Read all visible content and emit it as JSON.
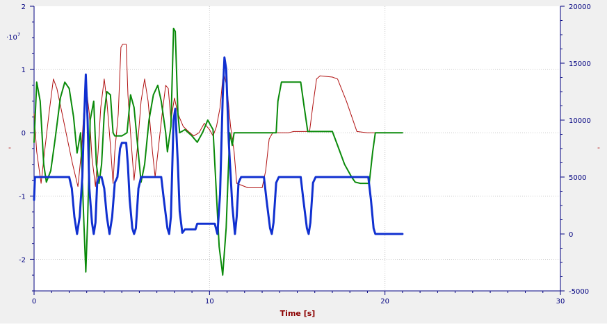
{
  "chart_data": {
    "type": "line",
    "xlabel": "Time [s]",
    "xlim": [
      0,
      30
    ],
    "x_ticks": [
      0,
      10,
      20,
      30
    ],
    "left_axis": {
      "multiplier": "·10",
      "multiplier_exp": "7",
      "unit_marker": "-",
      "ylim": [
        -2.5,
        2
      ],
      "ticks": [
        2,
        1,
        0,
        -1,
        -2
      ]
    },
    "right_axis": {
      "unit_marker": "-",
      "ylim": [
        -5000,
        20000
      ],
      "ticks": [
        20000,
        15000,
        10000,
        5000,
        0,
        -5000
      ]
    },
    "grid": true,
    "colors": {
      "axis": "#000080",
      "xlabel": "#8b0000",
      "grid": "#c8c8c8",
      "background": "#ffffff"
    },
    "series": [
      {
        "color": "#b01010",
        "width": 1,
        "axis": "left",
        "points": [
          [
            0,
            0.3
          ],
          [
            0.15,
            -0.3
          ],
          [
            0.4,
            -0.8
          ],
          [
            0.6,
            -0.3
          ],
          [
            0.85,
            0.3
          ],
          [
            1.1,
            0.85
          ],
          [
            1.3,
            0.7
          ],
          [
            1.6,
            0.3
          ],
          [
            1.9,
            -0.1
          ],
          [
            2.2,
            -0.5
          ],
          [
            2.5,
            -0.85
          ],
          [
            2.7,
            -0.3
          ],
          [
            2.85,
            0.4
          ],
          [
            3.0,
            0.65
          ],
          [
            3.15,
            0.3
          ],
          [
            3.3,
            -0.4
          ],
          [
            3.5,
            -0.85
          ],
          [
            3.65,
            -0.3
          ],
          [
            3.8,
            0.4
          ],
          [
            4.0,
            0.85
          ],
          [
            4.15,
            0.5
          ],
          [
            4.35,
            -0.2
          ],
          [
            4.5,
            -0.8
          ],
          [
            4.6,
            -0.3
          ],
          [
            4.8,
            0.3
          ],
          [
            4.95,
            1.35
          ],
          [
            5.05,
            1.4
          ],
          [
            5.25,
            1.4
          ],
          [
            5.35,
            0.6
          ],
          [
            5.55,
            -0.2
          ],
          [
            5.7,
            -0.75
          ],
          [
            5.9,
            -0.2
          ],
          [
            6.1,
            0.5
          ],
          [
            6.3,
            0.85
          ],
          [
            6.5,
            0.5
          ],
          [
            6.75,
            -0.3
          ],
          [
            6.9,
            -0.7
          ],
          [
            7.1,
            -0.2
          ],
          [
            7.3,
            0.3
          ],
          [
            7.5,
            0.75
          ],
          [
            7.65,
            0.7
          ],
          [
            7.8,
            0.2
          ],
          [
            8.0,
            0.55
          ],
          [
            8.2,
            0.3
          ],
          [
            8.5,
            0.1
          ],
          [
            8.8,
            0.02
          ],
          [
            9.1,
            -0.05
          ],
          [
            9.4,
            0.0
          ],
          [
            9.7,
            0.15
          ],
          [
            10.0,
            0.05
          ],
          [
            10.2,
            -0.05
          ],
          [
            10.4,
            0.1
          ],
          [
            10.6,
            0.4
          ],
          [
            10.75,
            0.85
          ],
          [
            10.85,
            0.9
          ],
          [
            11.0,
            0.7
          ],
          [
            11.2,
            0.1
          ],
          [
            11.4,
            -0.3
          ],
          [
            11.55,
            -0.8
          ],
          [
            12.2,
            -0.87
          ],
          [
            13.0,
            -0.87
          ],
          [
            13.2,
            -0.6
          ],
          [
            13.4,
            -0.1
          ],
          [
            13.6,
            0.0
          ],
          [
            14.2,
            0.0
          ],
          [
            14.5,
            0.0
          ],
          [
            14.8,
            0.02
          ],
          [
            15.4,
            0.02
          ],
          [
            15.7,
            0.02
          ],
          [
            15.9,
            0.45
          ],
          [
            16.1,
            0.85
          ],
          [
            16.3,
            0.9
          ],
          [
            17.0,
            0.88
          ],
          [
            17.3,
            0.85
          ],
          [
            17.8,
            0.5
          ],
          [
            18.4,
            0.02
          ],
          [
            19.0,
            0.0
          ],
          [
            21.0,
            0.0
          ]
        ]
      },
      {
        "color": "#0a8a0a",
        "width": 2,
        "axis": "left",
        "points": [
          [
            0,
            -0.15
          ],
          [
            0.15,
            0.8
          ],
          [
            0.35,
            0.5
          ],
          [
            0.55,
            -0.5
          ],
          [
            0.7,
            -0.78
          ],
          [
            0.95,
            -0.6
          ],
          [
            1.2,
            -0.1
          ],
          [
            1.5,
            0.55
          ],
          [
            1.75,
            0.8
          ],
          [
            2.0,
            0.7
          ],
          [
            2.25,
            0.25
          ],
          [
            2.45,
            -0.32
          ],
          [
            2.65,
            0.0
          ],
          [
            2.85,
            -1.5
          ],
          [
            2.95,
            -2.2
          ],
          [
            3.05,
            -1.4
          ],
          [
            3.2,
            0.2
          ],
          [
            3.4,
            0.5
          ],
          [
            3.55,
            -0.5
          ],
          [
            3.7,
            -0.8
          ],
          [
            3.85,
            -0.5
          ],
          [
            4.0,
            0.3
          ],
          [
            4.15,
            0.65
          ],
          [
            4.35,
            0.6
          ],
          [
            4.5,
            0.0
          ],
          [
            4.6,
            -0.05
          ],
          [
            5.0,
            -0.05
          ],
          [
            5.3,
            0.0
          ],
          [
            5.5,
            0.6
          ],
          [
            5.7,
            0.4
          ],
          [
            5.9,
            -0.2
          ],
          [
            6.1,
            -0.78
          ],
          [
            6.3,
            -0.5
          ],
          [
            6.55,
            0.2
          ],
          [
            6.8,
            0.6
          ],
          [
            7.05,
            0.75
          ],
          [
            7.25,
            0.5
          ],
          [
            7.5,
            0.0
          ],
          [
            7.6,
            -0.3
          ],
          [
            7.8,
            0.1
          ],
          [
            7.95,
            1.65
          ],
          [
            8.05,
            1.6
          ],
          [
            8.2,
            0.3
          ],
          [
            8.3,
            0.0
          ],
          [
            8.6,
            0.05
          ],
          [
            9.0,
            -0.05
          ],
          [
            9.3,
            -0.15
          ],
          [
            9.6,
            0.0
          ],
          [
            9.9,
            0.2
          ],
          [
            10.2,
            0.05
          ],
          [
            10.4,
            -1.0
          ],
          [
            10.55,
            -1.8
          ],
          [
            10.75,
            -2.25
          ],
          [
            10.95,
            -1.5
          ],
          [
            11.15,
            0.0
          ],
          [
            11.3,
            -0.2
          ],
          [
            11.4,
            0.0
          ],
          [
            12.0,
            0.0
          ],
          [
            13.8,
            0.0
          ],
          [
            13.9,
            0.5
          ],
          [
            14.1,
            0.8
          ],
          [
            14.5,
            0.8
          ],
          [
            15.2,
            0.8
          ],
          [
            15.4,
            0.4
          ],
          [
            15.6,
            0.02
          ],
          [
            16.5,
            0.02
          ],
          [
            17.0,
            0.02
          ],
          [
            17.3,
            -0.2
          ],
          [
            17.7,
            -0.5
          ],
          [
            18.1,
            -0.7
          ],
          [
            18.3,
            -0.78
          ],
          [
            18.6,
            -0.8
          ],
          [
            19.1,
            -0.8
          ],
          [
            19.3,
            -0.3
          ],
          [
            19.45,
            0.0
          ],
          [
            21.0,
            0.0
          ]
        ]
      },
      {
        "color": "#1030d0",
        "width": 3,
        "axis": "right",
        "points": [
          [
            0,
            3000
          ],
          [
            0.05,
            5000
          ],
          [
            2.0,
            5000
          ],
          [
            2.15,
            4000
          ],
          [
            2.3,
            1500
          ],
          [
            2.45,
            0
          ],
          [
            2.6,
            1500
          ],
          [
            2.75,
            5000
          ],
          [
            2.85,
            10000
          ],
          [
            2.95,
            14000
          ],
          [
            3.05,
            10000
          ],
          [
            3.15,
            4000
          ],
          [
            3.3,
            1000
          ],
          [
            3.4,
            0
          ],
          [
            3.5,
            1000
          ],
          [
            3.6,
            4500
          ],
          [
            3.7,
            5000
          ],
          [
            3.85,
            5000
          ],
          [
            4.0,
            4000
          ],
          [
            4.15,
            1500
          ],
          [
            4.3,
            0
          ],
          [
            4.45,
            1500
          ],
          [
            4.6,
            4500
          ],
          [
            4.75,
            5000
          ],
          [
            4.9,
            7500
          ],
          [
            5.0,
            8000
          ],
          [
            5.25,
            8000
          ],
          [
            5.35,
            6000
          ],
          [
            5.45,
            3000
          ],
          [
            5.6,
            500
          ],
          [
            5.7,
            0
          ],
          [
            5.8,
            500
          ],
          [
            5.95,
            4000
          ],
          [
            6.1,
            5000
          ],
          [
            7.25,
            5000
          ],
          [
            7.4,
            3000
          ],
          [
            7.6,
            500
          ],
          [
            7.7,
            0
          ],
          [
            7.8,
            1500
          ],
          [
            7.95,
            10000
          ],
          [
            8.05,
            11000
          ],
          [
            8.2,
            6000
          ],
          [
            8.3,
            2000
          ],
          [
            8.45,
            100
          ],
          [
            8.6,
            400
          ],
          [
            9.2,
            400
          ],
          [
            9.3,
            900
          ],
          [
            10.3,
            900
          ],
          [
            10.45,
            0
          ],
          [
            10.6,
            3500
          ],
          [
            10.75,
            12000
          ],
          [
            10.85,
            15500
          ],
          [
            10.95,
            14500
          ],
          [
            11.1,
            8000
          ],
          [
            11.3,
            2500
          ],
          [
            11.45,
            0
          ],
          [
            11.55,
            1500
          ],
          [
            11.65,
            4500
          ],
          [
            11.8,
            5000
          ],
          [
            13.1,
            5000
          ],
          [
            13.25,
            3000
          ],
          [
            13.45,
            500
          ],
          [
            13.55,
            0
          ],
          [
            13.65,
            1000
          ],
          [
            13.8,
            4500
          ],
          [
            13.95,
            5000
          ],
          [
            15.2,
            5000
          ],
          [
            15.35,
            3000
          ],
          [
            15.55,
            500
          ],
          [
            15.65,
            0
          ],
          [
            15.75,
            1000
          ],
          [
            15.9,
            4500
          ],
          [
            16.05,
            5000
          ],
          [
            19.05,
            5000
          ],
          [
            19.2,
            3000
          ],
          [
            19.35,
            500
          ],
          [
            19.45,
            0
          ],
          [
            21.0,
            0
          ]
        ]
      }
    ]
  }
}
